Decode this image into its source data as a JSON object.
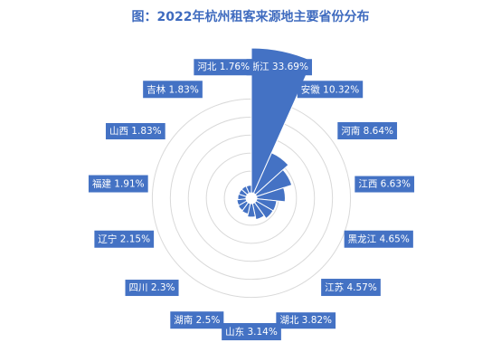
{
  "chart_data": {
    "type": "nightingale-rose",
    "title": "图：2022年杭州租客来源地主要省份分布",
    "unit": "%",
    "series_color": "#4472c4",
    "rings": 5,
    "categories": [
      "浙江",
      "安徽",
      "河南",
      "江西",
      "黑龙江",
      "江苏",
      "湖北",
      "山东",
      "湖南",
      "四川",
      "辽宁",
      "福建",
      "山西",
      "吉林",
      "河北"
    ],
    "values": [
      33.69,
      10.32,
      8.64,
      6.63,
      4.65,
      4.57,
      3.82,
      3.14,
      2.5,
      2.3,
      2.15,
      1.91,
      1.83,
      1.83,
      1.76
    ],
    "value_labels": [
      "33.69%",
      "10.32%",
      "8.64%",
      "6.63%",
      "4.65%",
      "4.57%",
      "3.82%",
      "3.14%",
      "2.5%",
      "2.3%",
      "2.15%",
      "1.91%",
      "1.83%",
      "1.83%",
      "1.76%"
    ]
  }
}
